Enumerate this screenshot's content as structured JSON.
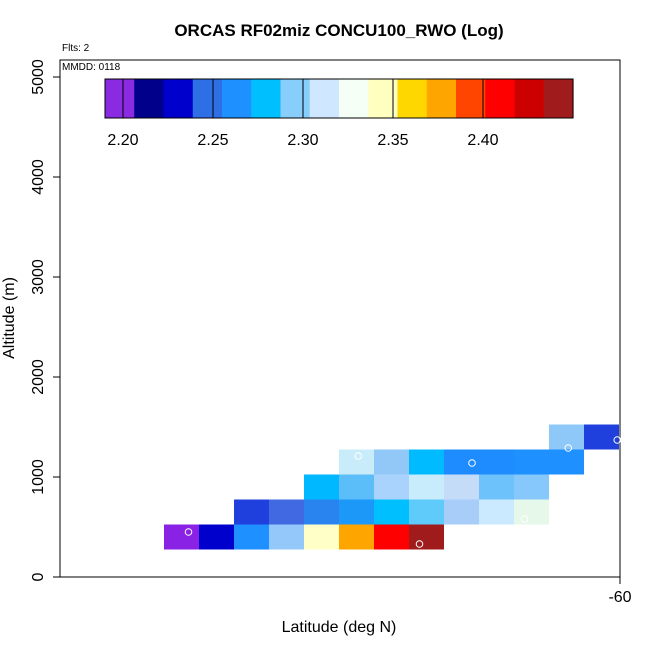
{
  "chart_data": {
    "type": "heatmap",
    "title": "ORCAS RF02miz CONCU100_RWO (Log)",
    "annotations": {
      "flights": "Flts: 2",
      "date": "MMDD: 0118"
    },
    "xlabel": "Latitude (deg N)",
    "ylabel": "Altitude (m)",
    "x_tick_labels": [
      "-60"
    ],
    "y_tick_labels": [
      "0",
      "1000",
      "2000",
      "3000",
      "4000",
      "5000"
    ],
    "ylim": [
      0,
      5200
    ],
    "colorbar": {
      "range": [
        2.19,
        2.45
      ],
      "tick_labels": [
        "2.20",
        "2.25",
        "2.30",
        "2.35",
        "2.40"
      ],
      "colors": [
        "#8a2be2",
        "#00008b",
        "#0000cd",
        "#2e6fe6",
        "#1e90ff",
        "#00bfff",
        "#87cefa",
        "#cfe8ff",
        "#f5fff5",
        "#ffffc0",
        "#ffd700",
        "#ffa500",
        "#ff4500",
        "#ff0000",
        "#cd0000",
        "#a01c1c"
      ]
    },
    "cells": [
      {
        "col": 0,
        "alt": 400,
        "color": "#8a22e6"
      },
      {
        "col": 1,
        "alt": 400,
        "color": "#0000cd"
      },
      {
        "col": 2,
        "alt": 400,
        "color": "#1e90ff"
      },
      {
        "col": 3,
        "alt": 400,
        "color": "#94c8fa"
      },
      {
        "col": 4,
        "alt": 400,
        "color": "#ffffc8"
      },
      {
        "col": 5,
        "alt": 400,
        "color": "#ffa500"
      },
      {
        "col": 6,
        "alt": 400,
        "color": "#ff0000"
      },
      {
        "col": 7,
        "alt": 400,
        "color": "#a01c1c"
      },
      {
        "col": 2,
        "alt": 650,
        "color": "#2040dd"
      },
      {
        "col": 3,
        "alt": 650,
        "color": "#4169e1"
      },
      {
        "col": 4,
        "alt": 650,
        "color": "#2a84f0"
      },
      {
        "col": 5,
        "alt": 650,
        "color": "#1c98f8"
      },
      {
        "col": 6,
        "alt": 650,
        "color": "#00bfff"
      },
      {
        "col": 7,
        "alt": 650,
        "color": "#5ecbfb"
      },
      {
        "col": 8,
        "alt": 650,
        "color": "#a8cdf8"
      },
      {
        "col": 9,
        "alt": 650,
        "color": "#cbe9ff"
      },
      {
        "col": 10,
        "alt": 650,
        "color": "#e6f8ea"
      },
      {
        "col": 4,
        "alt": 900,
        "color": "#00b8ff"
      },
      {
        "col": 5,
        "alt": 900,
        "color": "#5cbef8"
      },
      {
        "col": 6,
        "alt": 900,
        "color": "#a9d3fc"
      },
      {
        "col": 7,
        "alt": 900,
        "color": "#c8ecfc"
      },
      {
        "col": 8,
        "alt": 900,
        "color": "#c4dcf8"
      },
      {
        "col": 9,
        "alt": 900,
        "color": "#6ec2fb"
      },
      {
        "col": 10,
        "alt": 900,
        "color": "#86c8fb"
      },
      {
        "col": 5,
        "alt": 1150,
        "color": "#c8ecfa"
      },
      {
        "col": 6,
        "alt": 1150,
        "color": "#92c8f8"
      },
      {
        "col": 7,
        "alt": 1150,
        "color": "#00bbff"
      },
      {
        "col": 8,
        "alt": 1150,
        "color": "#1e8cff"
      },
      {
        "col": 9,
        "alt": 1150,
        "color": "#1e8cff"
      },
      {
        "col": 10,
        "alt": 1150,
        "color": "#1e90ff"
      },
      {
        "col": 11,
        "alt": 1150,
        "color": "#1e90ff"
      },
      {
        "col": 11,
        "alt": 1400,
        "color": "#8ec8f8"
      },
      {
        "col": 12,
        "alt": 1400,
        "color": "#2040dd"
      }
    ],
    "markers": [
      {
        "col": 0.7,
        "alt": 450
      },
      {
        "col": 7.3,
        "alt": 330
      },
      {
        "col": 5.55,
        "alt": 1210
      },
      {
        "col": 8.8,
        "alt": 1140
      },
      {
        "col": 10.3,
        "alt": 580
      },
      {
        "col": 11.55,
        "alt": 1290
      },
      {
        "col": 12.95,
        "alt": 1370
      }
    ]
  }
}
